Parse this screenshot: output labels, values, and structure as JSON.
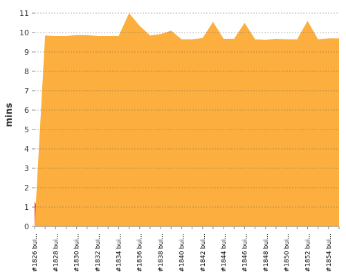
{
  "chart_data": {
    "type": "area",
    "y_label": "mins",
    "categories": [
      "#1826 bui...",
      null,
      "#1828 bui...",
      null,
      "#1830 bui...",
      null,
      "#1832 bui...",
      null,
      "#1834 bui...",
      null,
      "#1836 bui...",
      null,
      "#1838 bui...",
      null,
      "#1840 bui...",
      null,
      "#1842 bui...",
      null,
      "#1844 bui...",
      null,
      "#1846 bui...",
      null,
      "#1848 bui...",
      null,
      "#1850 bui...",
      null,
      "#1852 bui...",
      null,
      "#1854 bui...",
      null
    ],
    "series": [
      {
        "color": "#ef2929",
        "values": [
          1.3,
          0,
          0,
          0,
          0,
          0,
          0,
          0,
          0,
          0,
          0,
          0,
          0,
          0,
          0,
          0,
          0,
          0,
          0,
          0,
          0,
          0,
          0,
          0,
          0,
          0,
          0,
          0,
          0,
          0
        ]
      },
      {
        "color": "#fcaf3e",
        "values": [
          0,
          9.85,
          9.82,
          9.82,
          9.87,
          9.87,
          9.82,
          9.82,
          9.82,
          11.0,
          10.35,
          9.85,
          9.92,
          10.1,
          9.65,
          9.65,
          9.72,
          10.55,
          9.68,
          9.68,
          10.5,
          9.65,
          9.62,
          9.68,
          9.65,
          9.65,
          10.6,
          9.65,
          9.7,
          9.7
        ]
      }
    ],
    "ylim": [
      0,
      11.5
    ],
    "yticks": [
      0,
      1,
      2,
      3,
      4,
      5,
      6,
      7,
      8,
      9,
      10,
      11
    ],
    "grid": true
  }
}
